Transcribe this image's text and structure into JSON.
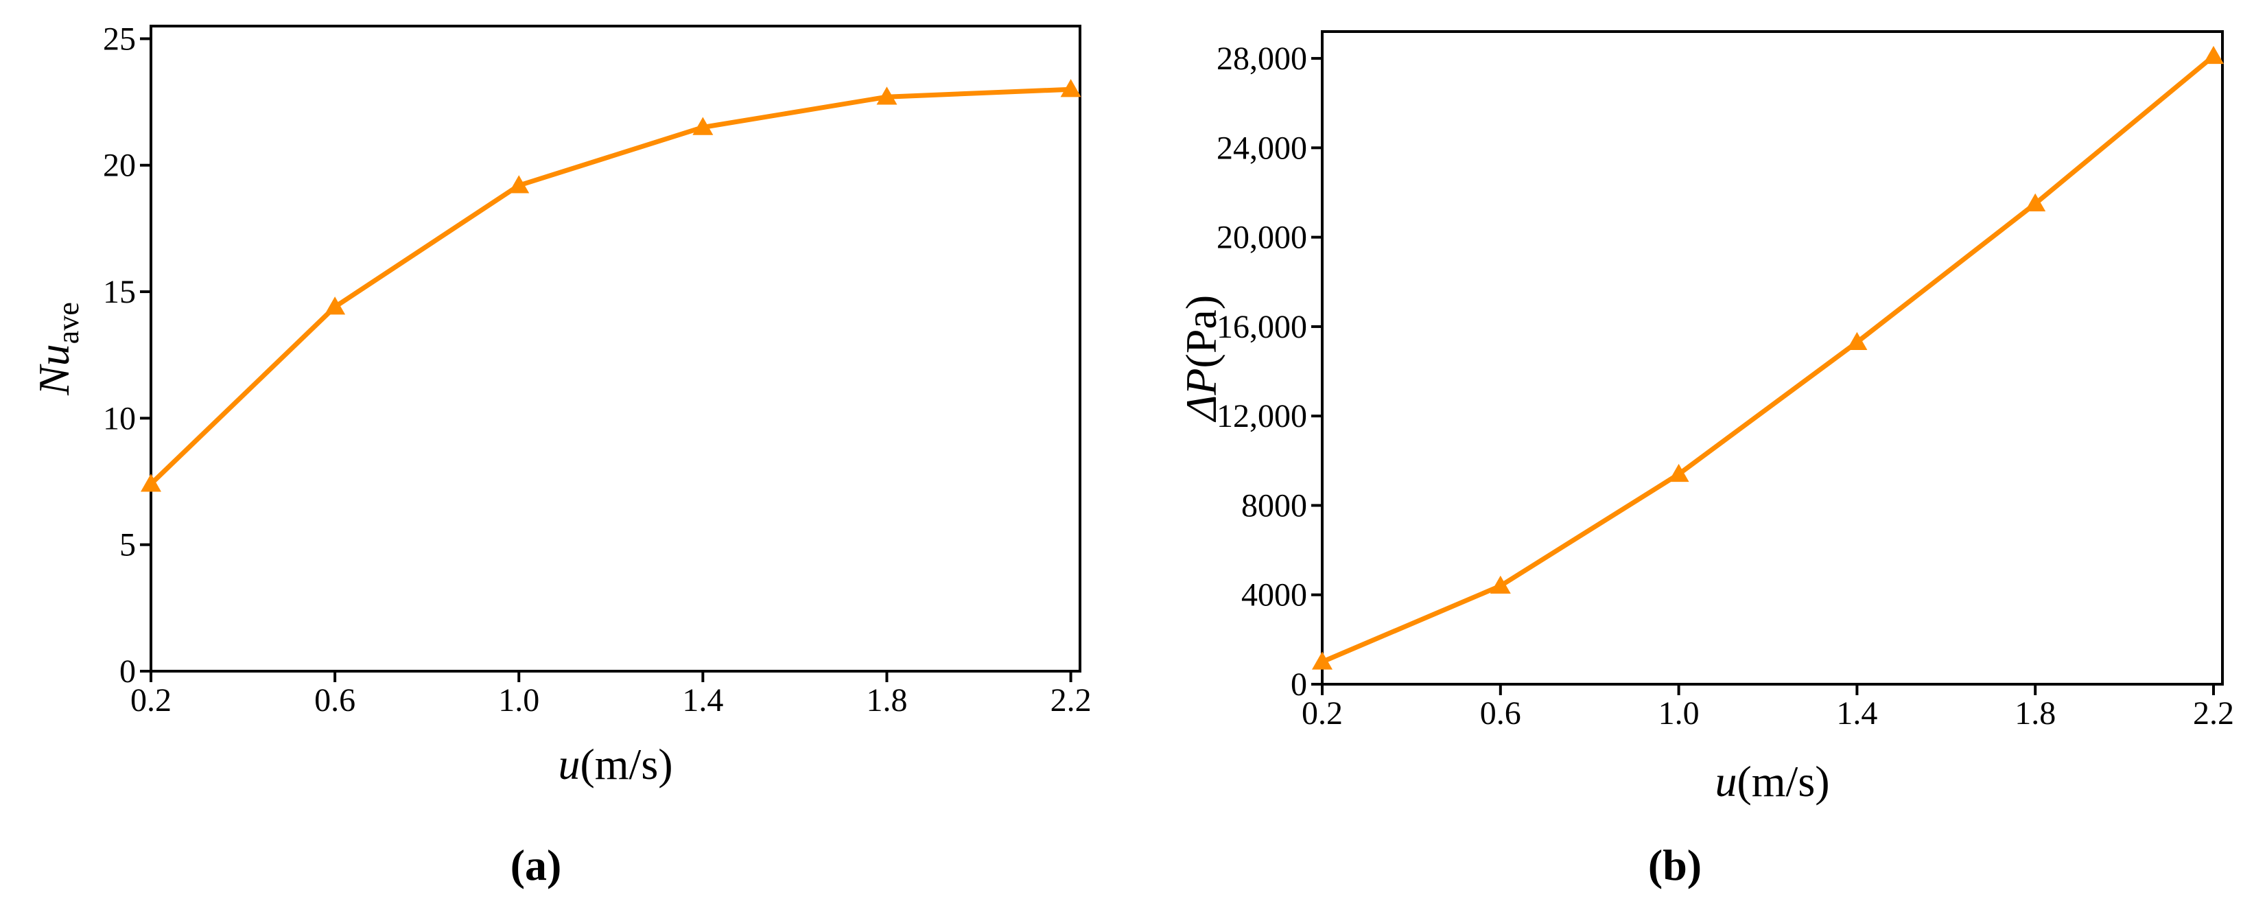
{
  "chart_data": [
    {
      "type": "line",
      "panel_label": "(a)",
      "x_label": "u",
      "x_label_unit": "(m/s)",
      "y_label": "Nu",
      "y_label_subscript": "ave",
      "x": [
        0.2,
        0.6,
        1.0,
        1.4,
        1.8,
        2.2
      ],
      "series": [
        {
          "name": "Nu_ave",
          "color": "#ff8c00",
          "values": [
            7.4,
            14.4,
            19.2,
            21.5,
            22.7,
            23.0
          ]
        }
      ],
      "xlim": [
        0.2,
        2.22
      ],
      "xticks": [
        0.2,
        0.6,
        {
          "value": 1,
          "label": "1.0"
        },
        1.4,
        1.8,
        2.2
      ],
      "ylim": [
        0,
        25.5
      ],
      "yticks": [
        0,
        5,
        10,
        15,
        20,
        25
      ]
    },
    {
      "type": "line",
      "panel_label": "(b)",
      "x_label": "u",
      "x_label_unit": "(m/s)",
      "y_label": "ΔP",
      "y_label_unit": "(Pa)",
      "x": [
        0.2,
        0.6,
        1.0,
        1.4,
        1.8,
        2.2
      ],
      "series": [
        {
          "name": "ΔP",
          "color": "#ff8c00",
          "values": [
            1000,
            4400,
            9400,
            15300,
            21500,
            28100
          ]
        }
      ],
      "xlim": [
        0.2,
        2.22
      ],
      "xticks": [
        0.2,
        0.6,
        {
          "value": 1,
          "label": "1.0"
        },
        1.4,
        1.8,
        2.2
      ],
      "ylim": [
        0,
        29200
      ],
      "yticks": [
        0,
        4000,
        8000,
        {
          "value": 12000,
          "label": "12,000"
        },
        {
          "value": 16000,
          "label": "16,000"
        },
        {
          "value": 20000,
          "label": "20,000"
        },
        {
          "value": 24000,
          "label": "24,000"
        },
        {
          "value": 28000,
          "label": "28,000"
        }
      ]
    }
  ]
}
